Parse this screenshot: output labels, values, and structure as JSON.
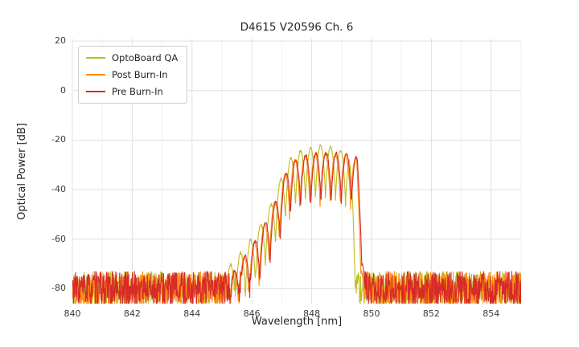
{
  "chart_data": {
    "type": "line",
    "title": "D4615 V20596 Ch. 6",
    "xlabel": "Wavelength [nm]",
    "ylabel": "Optical Power [dB]",
    "xlim": [
      840,
      855
    ],
    "ylim": [
      -86,
      21
    ],
    "xticks": [
      840,
      842,
      844,
      846,
      848,
      850,
      852,
      854
    ],
    "yticks": [
      20,
      0,
      -20,
      -40,
      -60,
      -80
    ],
    "grid": true,
    "legend_position": "upper-left",
    "noise_floor_db": -80,
    "noise_spread_db": 7,
    "series": [
      {
        "name": "OptoBoard QA",
        "color": "#bcbd22",
        "seed": 11,
        "mode_spacing_nm": 0.335,
        "mode_phase_nm": 846.62,
        "ripple_depth_db": 22,
        "envelope_nm_db": [
          [
            845.0,
            -74
          ],
          [
            845.45,
            -68
          ],
          [
            845.85,
            -62
          ],
          [
            846.25,
            -55
          ],
          [
            846.6,
            -47
          ],
          [
            846.95,
            -36
          ],
          [
            847.3,
            -27
          ],
          [
            847.6,
            -24.5
          ],
          [
            848.0,
            -23
          ],
          [
            848.3,
            -22
          ],
          [
            848.7,
            -22.8
          ],
          [
            849.0,
            -24
          ],
          [
            849.25,
            -26
          ],
          [
            849.38,
            -44
          ],
          [
            849.5,
            -75
          ]
        ]
      },
      {
        "name": "Post Burn-In",
        "color": "#ff8c14",
        "seed": 22,
        "mode_spacing_nm": 0.34,
        "mode_phase_nm": 846.75,
        "ripple_depth_db": 21,
        "envelope_nm_db": [
          [
            845.3,
            -74
          ],
          [
            845.7,
            -68
          ],
          [
            846.1,
            -61
          ],
          [
            846.5,
            -52
          ],
          [
            846.85,
            -43
          ],
          [
            847.15,
            -32
          ],
          [
            847.45,
            -28
          ],
          [
            847.8,
            -26.5
          ],
          [
            848.2,
            -25.8
          ],
          [
            848.6,
            -25.5
          ],
          [
            848.95,
            -26
          ],
          [
            849.3,
            -26.5
          ],
          [
            849.5,
            -27.5
          ],
          [
            849.62,
            -50
          ],
          [
            849.74,
            -76
          ]
        ]
      },
      {
        "name": "Pre Burn-In",
        "color": "#d62b28",
        "seed": 33,
        "mode_spacing_nm": 0.34,
        "mode_phase_nm": 846.78,
        "ripple_depth_db": 21,
        "envelope_nm_db": [
          [
            845.35,
            -74
          ],
          [
            845.75,
            -67
          ],
          [
            846.15,
            -60
          ],
          [
            846.55,
            -51
          ],
          [
            846.9,
            -42
          ],
          [
            847.2,
            -31
          ],
          [
            847.5,
            -27.5
          ],
          [
            847.85,
            -26
          ],
          [
            848.25,
            -25.2
          ],
          [
            848.65,
            -25
          ],
          [
            849.0,
            -25.5
          ],
          [
            849.35,
            -26
          ],
          [
            849.52,
            -27
          ],
          [
            849.66,
            -48
          ],
          [
            849.78,
            -77
          ]
        ]
      }
    ]
  }
}
